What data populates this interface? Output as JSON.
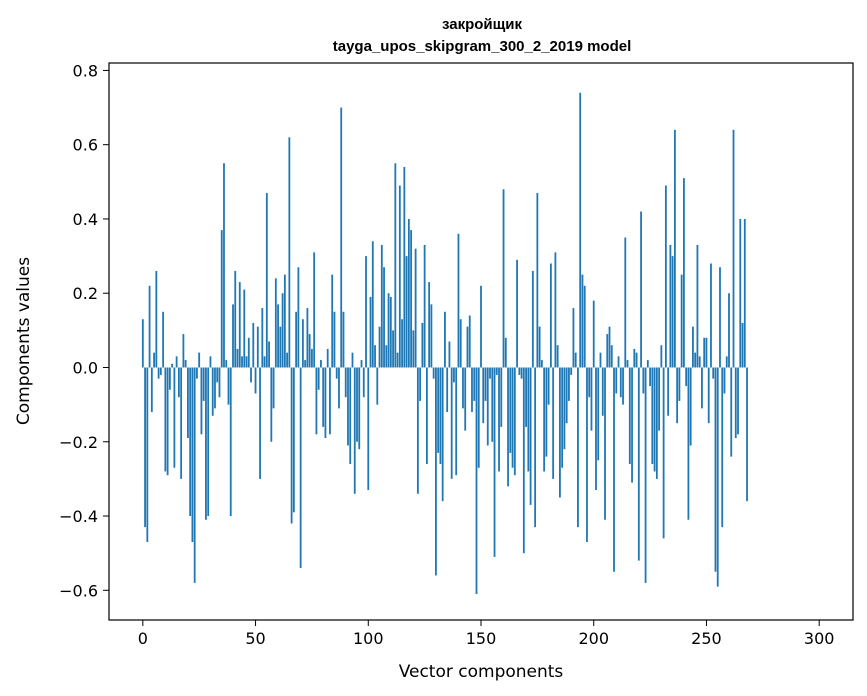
{
  "chart_data": {
    "type": "bar",
    "title": "закройщик",
    "subtitle": "tayga_upos_skipgram_300_2_2019 model",
    "xlabel": "Vector components",
    "ylabel": "Components values",
    "xlim": [
      -15,
      315
    ],
    "ylim": [
      -0.68,
      0.82
    ],
    "xticks": [
      0,
      50,
      100,
      150,
      200,
      250,
      300
    ],
    "yticks": [
      -0.6,
      -0.4,
      -0.2,
      0.0,
      0.2,
      0.4,
      0.6,
      0.8
    ],
    "xtick_labels": [
      "0",
      "50",
      "100",
      "150",
      "200",
      "250",
      "300"
    ],
    "ytick_labels": [
      "−0.6",
      "−0.4",
      "−0.2",
      "0.0",
      "0.2",
      "0.4",
      "0.6",
      "0.8"
    ],
    "grid": false,
    "bar_color": "#1f77b4",
    "values": [
      0.13,
      -0.43,
      -0.47,
      0.22,
      -0.12,
      0.04,
      0.26,
      -0.03,
      -0.02,
      0.15,
      -0.28,
      -0.29,
      -0.06,
      0.01,
      -0.27,
      0.03,
      -0.08,
      -0.3,
      0.09,
      0.02,
      -0.19,
      -0.4,
      -0.47,
      -0.58,
      -0.03,
      0.04,
      -0.18,
      -0.09,
      -0.41,
      -0.4,
      0.03,
      -0.13,
      -0.11,
      -0.04,
      -0.08,
      0.37,
      0.55,
      0.02,
      -0.1,
      -0.4,
      0.17,
      0.26,
      0.05,
      0.23,
      0.03,
      0.21,
      0.03,
      0.08,
      -0.04,
      0.12,
      -0.07,
      0.11,
      -0.3,
      0.16,
      0.03,
      0.47,
      0.07,
      -0.2,
      -0.11,
      0.24,
      0.17,
      0.11,
      0.2,
      0.25,
      0.04,
      0.62,
      -0.42,
      -0.39,
      0.15,
      0.27,
      -0.54,
      0.13,
      0.02,
      0.16,
      0.09,
      0.05,
      0.31,
      -0.18,
      -0.06,
      0.02,
      -0.16,
      -0.19,
      0.05,
      -0.18,
      0.25,
      0.15,
      -0.03,
      -0.11,
      0.7,
      0.15,
      -0.08,
      -0.21,
      -0.26,
      0.04,
      -0.34,
      -0.2,
      -0.22,
      0.02,
      -0.08,
      0.3,
      -0.33,
      0.19,
      0.34,
      0.06,
      -0.1,
      0.11,
      0.33,
      0.27,
      0.06,
      0.2,
      0.19,
      0.1,
      0.55,
      0.04,
      0.49,
      0.13,
      0.54,
      0.3,
      0.4,
      0.37,
      0.1,
      0.32,
      -0.34,
      -0.09,
      0.12,
      0.33,
      -0.26,
      0.23,
      0.17,
      -0.03,
      -0.56,
      -0.23,
      -0.26,
      -0.36,
      0.15,
      -0.12,
      0.07,
      -0.3,
      -0.04,
      -0.29,
      0.36,
      0.13,
      -0.11,
      -0.17,
      0.11,
      0.14,
      -0.12,
      -0.09,
      -0.61,
      -0.27,
      0.22,
      -0.15,
      -0.09,
      -0.21,
      -0.03,
      -0.2,
      -0.51,
      -0.02,
      -0.28,
      -0.16,
      0.48,
      0.08,
      -0.32,
      -0.23,
      -0.27,
      -0.29,
      0.29,
      -0.02,
      -0.03,
      -0.5,
      -0.16,
      -0.28,
      -0.37,
      0.26,
      -0.43,
      0.47,
      0.11,
      0.02,
      -0.28,
      -0.24,
      -0.1,
      0.28,
      -0.3,
      0.31,
      0.06,
      -0.35,
      -0.27,
      -0.22,
      -0.15,
      -0.09,
      -0.02,
      0.16,
      0.04,
      -0.43,
      0.74,
      0.25,
      0.22,
      -0.47,
      -0.08,
      -0.17,
      0.18,
      -0.33,
      -0.25,
      0.04,
      -0.13,
      -0.41,
      0.09,
      0.11,
      0.06,
      -0.55,
      -0.07,
      0.03,
      -0.08,
      -0.1,
      0.35,
      0.02,
      -0.26,
      -0.31,
      0.05,
      0.04,
      -0.52,
      0.42,
      -0.07,
      -0.58,
      0.02,
      -0.05,
      -0.26,
      -0.28,
      -0.3,
      -0.17,
      0.06,
      -0.46,
      0.49,
      -0.13,
      0.33,
      0.3,
      0.64,
      -0.15,
      -0.09,
      0.25,
      0.51,
      -0.05,
      -0.41,
      -0.21,
      0.11,
      0.04,
      0.33,
      0.03,
      -0.11,
      0.08,
      0.08,
      -0.15,
      0.28,
      -0.03,
      -0.55,
      -0.59,
      0.27,
      -0.43,
      -0.07,
      0.03,
      0.2,
      -0.24,
      0.64,
      -0.19,
      -0.18,
      0.4,
      0.12,
      0.4,
      -0.36
    ]
  }
}
